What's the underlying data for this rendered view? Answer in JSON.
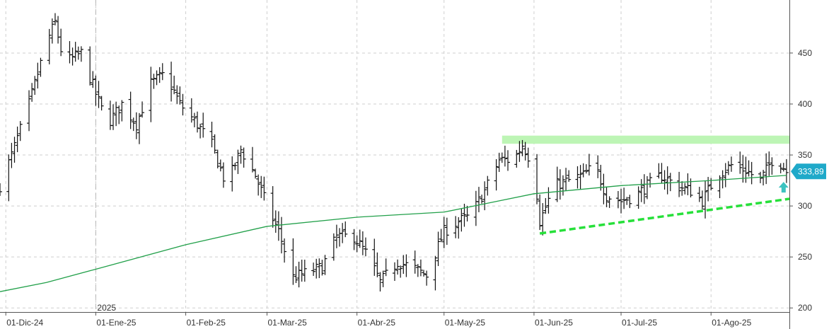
{
  "chart_data": {
    "type": "ohlc",
    "title": "",
    "xlabel": "",
    "ylabel": "",
    "ylim": [
      196,
      502
    ],
    "xlim": [
      "2024-11-29",
      "2025-08-28"
    ],
    "y_ticks": [
      200,
      250,
      300,
      350,
      400,
      450
    ],
    "x_ticks": [
      {
        "date": "2024-12-01",
        "label": "01-Dic-24"
      },
      {
        "date": "2025-01-01",
        "label": "01-Ene-25"
      },
      {
        "date": "2025-02-01",
        "label": "01-Feb-25"
      },
      {
        "date": "2025-03-01",
        "label": "01-Mar-25"
      },
      {
        "date": "2025-04-01",
        "label": "01-Abr-25"
      },
      {
        "date": "2025-05-01",
        "label": "01-May-25"
      },
      {
        "date": "2025-06-01",
        "label": "01-Jun-25"
      },
      {
        "date": "2025-07-01",
        "label": "01-Jul-25"
      },
      {
        "date": "2025-08-01",
        "label": "01-Ago-25"
      }
    ],
    "year_marker": {
      "date": "2025-01-01",
      "label": "2025"
    },
    "last_price": {
      "value": 333.89,
      "label": "333,89",
      "color": "#1fa9c9"
    },
    "grid": true,
    "anchors": [
      [
        "2024-11-29",
        320
      ],
      [
        "2024-12-03",
        350
      ],
      [
        "2024-12-09",
        400
      ],
      [
        "2024-12-15",
        460
      ],
      [
        "2024-12-18",
        480
      ],
      [
        "2024-12-21",
        440
      ],
      [
        "2024-12-27",
        450
      ],
      [
        "2025-01-01",
        410
      ],
      [
        "2025-01-05",
        380
      ],
      [
        "2025-01-10",
        400
      ],
      [
        "2025-01-15",
        380
      ],
      [
        "2025-01-20",
        420
      ],
      [
        "2025-01-25",
        430
      ],
      [
        "2025-01-30",
        400
      ],
      [
        "2025-02-05",
        380
      ],
      [
        "2025-02-10",
        360
      ],
      [
        "2025-02-15",
        320
      ],
      [
        "2025-02-20",
        355
      ],
      [
        "2025-02-25",
        330
      ],
      [
        "2025-03-01",
        300
      ],
      [
        "2025-03-05",
        275
      ],
      [
        "2025-03-10",
        230
      ],
      [
        "2025-03-15",
        235
      ],
      [
        "2025-03-20",
        240
      ],
      [
        "2025-03-25",
        270
      ],
      [
        "2025-03-31",
        270
      ],
      [
        "2025-04-05",
        250
      ],
      [
        "2025-04-09",
        225
      ],
      [
        "2025-04-15",
        245
      ],
      [
        "2025-04-20",
        240
      ],
      [
        "2025-04-25",
        232
      ],
      [
        "2025-05-01",
        275
      ],
      [
        "2025-05-06",
        285
      ],
      [
        "2025-05-10",
        290
      ],
      [
        "2025-05-15",
        315
      ],
      [
        "2025-05-20",
        345
      ],
      [
        "2025-05-25",
        345
      ],
      [
        "2025-05-28",
        360
      ],
      [
        "2025-06-01",
        338
      ],
      [
        "2025-06-03",
        285
      ],
      [
        "2025-06-08",
        320
      ],
      [
        "2025-06-13",
        325
      ],
      [
        "2025-06-18",
        330
      ],
      [
        "2025-06-22",
        340
      ],
      [
        "2025-06-26",
        310
      ],
      [
        "2025-07-01",
        305
      ],
      [
        "2025-07-06",
        310
      ],
      [
        "2025-07-10",
        320
      ],
      [
        "2025-07-15",
        330
      ],
      [
        "2025-07-20",
        320
      ],
      [
        "2025-07-25",
        315
      ],
      [
        "2025-07-29",
        305
      ],
      [
        "2025-08-03",
        330
      ],
      [
        "2025-08-08",
        340
      ],
      [
        "2025-08-13",
        335
      ],
      [
        "2025-08-18",
        325
      ],
      [
        "2025-08-23",
        350
      ],
      [
        "2025-08-27",
        334
      ]
    ],
    "moving_average": {
      "color": "#22a04a",
      "points": [
        [
          "2024-11-29",
          216
        ],
        [
          "2024-12-15",
          225
        ],
        [
          "2025-01-01",
          238
        ],
        [
          "2025-02-01",
          262
        ],
        [
          "2025-03-01",
          280
        ],
        [
          "2025-04-01",
          289
        ],
        [
          "2025-05-01",
          294
        ],
        [
          "2025-05-20",
          305
        ],
        [
          "2025-06-01",
          312
        ],
        [
          "2025-07-01",
          320
        ],
        [
          "2025-08-01",
          325
        ],
        [
          "2025-08-27",
          330
        ]
      ]
    },
    "trendline": {
      "color": "#27e03a",
      "dashed": true,
      "points": [
        [
          "2025-06-03",
          273
        ],
        [
          "2025-08-28",
          307
        ]
      ]
    },
    "resistance_zone": {
      "color": "#bdf5b5",
      "from": "2025-05-21",
      "to": "2025-08-28",
      "y_range": [
        361,
        369
      ]
    },
    "arrow": {
      "date": "2025-08-26",
      "value": 318,
      "direction": "up",
      "color": "#3cc3c0"
    }
  }
}
